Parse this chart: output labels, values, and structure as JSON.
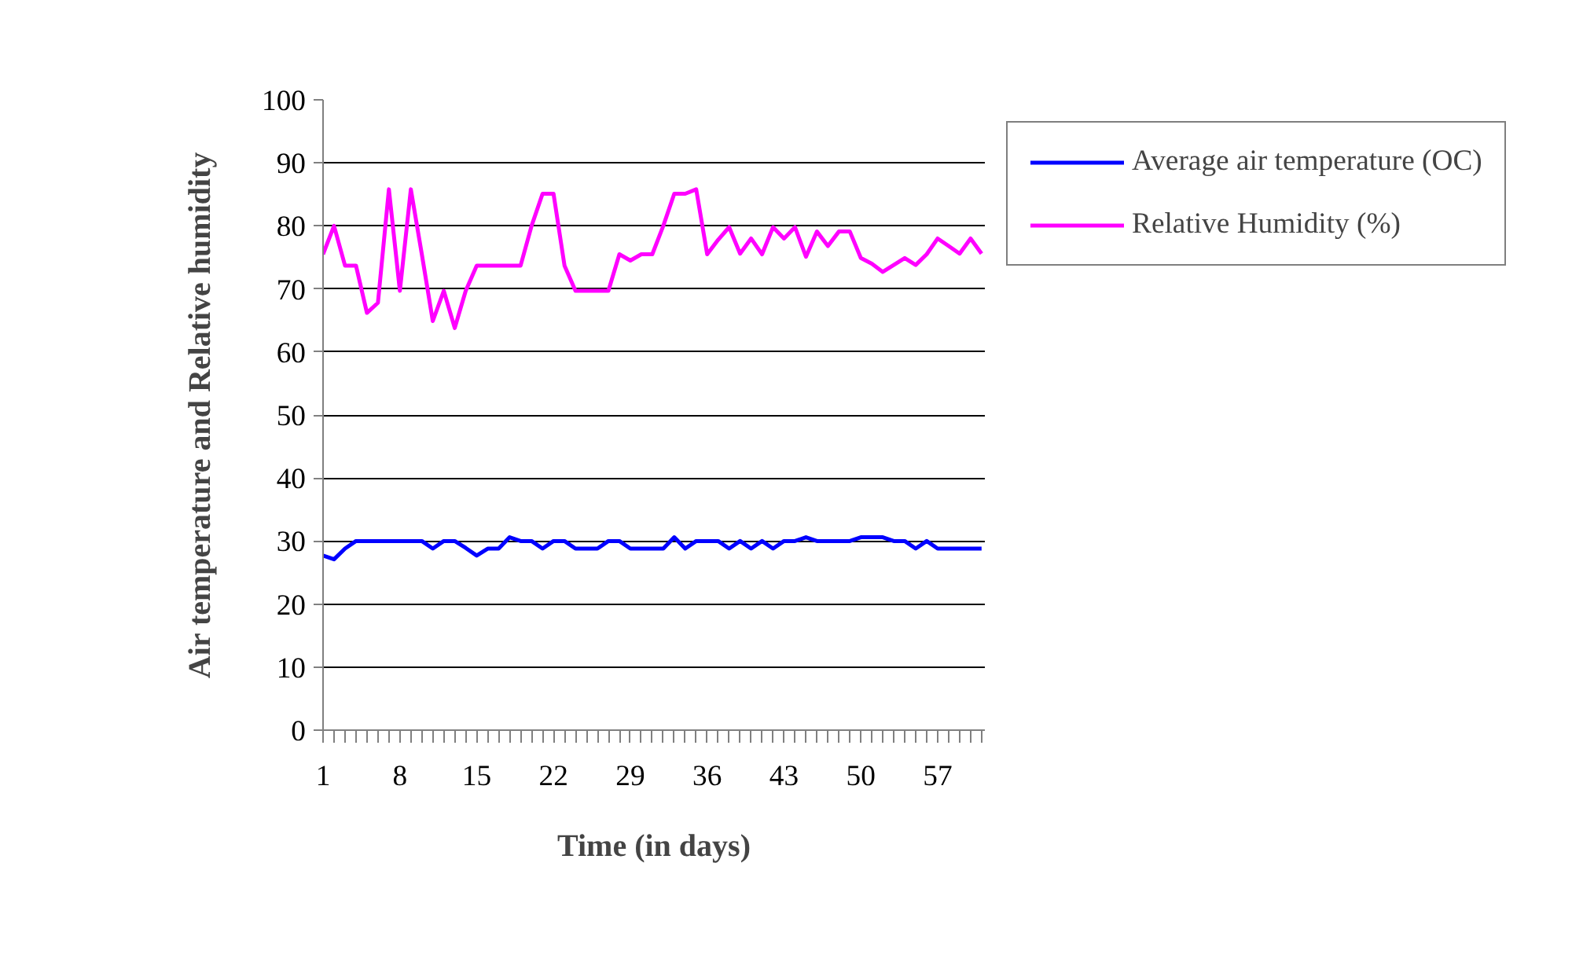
{
  "chart_data": {
    "type": "line",
    "xlabel": "Time (in days)",
    "ylabel": "Air temperature and Relative humidity",
    "categories": [
      "1",
      null,
      null,
      null,
      null,
      null,
      null,
      "8",
      null,
      null,
      null,
      null,
      null,
      null,
      "15",
      null,
      null,
      null,
      null,
      null,
      null,
      "22",
      null,
      null,
      null,
      null,
      null,
      null,
      "29",
      null,
      null,
      null,
      null,
      null,
      null,
      "36",
      null,
      null,
      null,
      null,
      null,
      null,
      "43",
      null,
      null,
      null,
      null,
      null,
      null,
      "50",
      null,
      null,
      null,
      null,
      null,
      null,
      "57",
      null,
      null,
      null,
      null
    ],
    "series": [
      {
        "name": "Average air temperature (OC)",
        "color": "#0000ff",
        "values": [
          27.7,
          27.1,
          28.8,
          30,
          30,
          30,
          30,
          30,
          30,
          30,
          28.8,
          30,
          30,
          28.9,
          27.7,
          28.8,
          28.8,
          30.6,
          30,
          30,
          28.8,
          30,
          30,
          28.8,
          28.8,
          28.8,
          30,
          30,
          28.8,
          28.8,
          28.8,
          28.8,
          30.6,
          28.8,
          30,
          30,
          30,
          28.8,
          30,
          28.8,
          30,
          28.8,
          30,
          30,
          30.6,
          30,
          30,
          30,
          30,
          30.6,
          30.6,
          30.6,
          30,
          30,
          28.8,
          30,
          28.8,
          28.8,
          28.8,
          28.8,
          28.8
        ]
      },
      {
        "name": "Relative Humidity (%)",
        "color": "#ff00ff",
        "values": [
          75.5,
          80,
          73.7,
          73.7,
          66.2,
          67.8,
          85.8,
          69.7,
          85.8,
          75.5,
          64.9,
          69.7,
          63.8,
          69.7,
          73.7,
          73.7,
          73.7,
          73.7,
          73.7,
          80,
          85.1,
          85.1,
          73.7,
          69.7,
          69.7,
          69.7,
          69.7,
          75.5,
          74.5,
          75.5,
          75.5,
          80,
          85.1,
          85.1,
          85.8,
          75.5,
          77.8,
          79.8,
          75.6,
          78,
          75.5,
          79.8,
          78,
          79.8,
          75.1,
          79.1,
          76.8,
          79.1,
          79.1,
          74.9,
          74,
          72.7,
          73.8,
          74.9,
          73.8,
          75.5,
          78,
          76.8,
          75.6,
          78,
          75.6
        ]
      }
    ],
    "ylim": [
      0,
      100
    ],
    "yticks": [
      0,
      10,
      20,
      30,
      40,
      50,
      60,
      70,
      80,
      90,
      100
    ],
    "grid": "y",
    "legend": "right",
    "marker": "none",
    "line_style": "solid"
  }
}
